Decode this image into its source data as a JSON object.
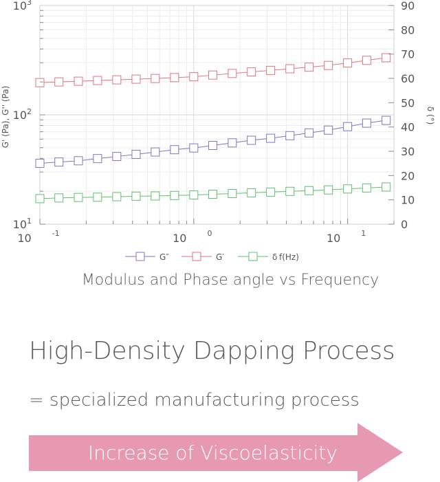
{
  "chart_data": {
    "type": "line",
    "title": "",
    "x_scale": "log",
    "x_tick_labels": [
      {
        "mantissa": "10",
        "exp": "-1"
      },
      {
        "mantissa": "10",
        "exp": "0"
      },
      {
        "mantissa": "10",
        "exp": "1"
      }
    ],
    "x_ticks": [
      0.1,
      1,
      10
    ],
    "xlim": [
      0.1,
      20
    ],
    "y_left_scale": "log",
    "y_left_label": "G' (Pa), G'' (Pa)",
    "y_left_tick_labels": [
      {
        "mantissa": "10",
        "exp": "1"
      },
      {
        "mantissa": "10",
        "exp": "2"
      },
      {
        "mantissa": "10",
        "exp": "3"
      }
    ],
    "y_left_ticks": [
      10,
      100,
      1000
    ],
    "ylim_left": [
      10,
      1000
    ],
    "y_right_label": "δ (°)",
    "y_right_ticks": [
      "0",
      "10",
      "20",
      "30",
      "40",
      "50",
      "60",
      "70",
      "80",
      "90"
    ],
    "ylim_right": [
      0,
      90
    ],
    "grid": true,
    "legend_position": "bottom",
    "x": [
      0.1,
      0.133,
      0.178,
      0.237,
      0.316,
      0.422,
      0.562,
      0.75,
      1.0,
      1.33,
      1.78,
      2.37,
      3.16,
      4.22,
      5.62,
      7.5,
      10.0,
      13.3,
      17.8
    ],
    "series": [
      {
        "name": "G″",
        "axis": "left",
        "color": "#7a78c0",
        "values": [
          36.0,
          37.0,
          38.0,
          39.8,
          41.6,
          43.5,
          45.7,
          48.0,
          49.8,
          52.5,
          55.4,
          58.5,
          61.0,
          64.5,
          68.3,
          72.5,
          78.0,
          84.0,
          89.0
        ]
      },
      {
        "name": "G′",
        "axis": "left",
        "color": "#e0737d",
        "values": [
          197,
          200,
          203,
          206,
          209,
          212,
          215,
          219,
          223,
          231,
          239,
          247,
          255,
          264,
          273,
          283,
          298,
          315,
          333
        ]
      },
      {
        "name": "δ",
        "axis": "right",
        "color": "#5fbf6f",
        "values": [
          10.5,
          10.8,
          11.0,
          11.1,
          11.3,
          11.5,
          11.6,
          11.8,
          12.0,
          12.3,
          12.6,
          12.9,
          13.2,
          13.5,
          13.8,
          14.1,
          14.5,
          14.9,
          15.3
        ]
      }
    ],
    "legend_labels": [
      "G″",
      "G′",
      "δ"
    ],
    "legend_x_label": "f(Hz)"
  },
  "caption": "Modulus and Phase angle vs Frequency",
  "headline": "High-Density Dapping Process",
  "subline": "= specialized manufacturing process",
  "arrow_label": "Increase of Viscoelasticity",
  "colors": {
    "arrow": "#e699b1",
    "text": "#5a5a5a"
  }
}
